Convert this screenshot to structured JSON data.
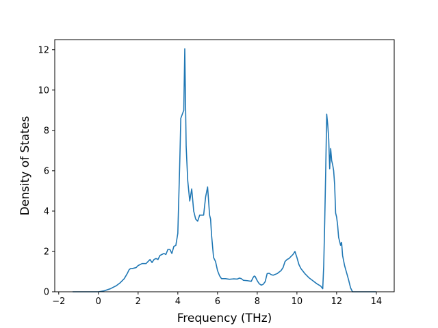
{
  "chart_data": {
    "type": "line",
    "title": "",
    "xlabel": "Frequency (THz)",
    "ylabel": "Density of States",
    "xlim": [
      -2.2,
      14.9
    ],
    "ylim": [
      0,
      12.5
    ],
    "xticks": [
      -2,
      0,
      2,
      4,
      6,
      8,
      10,
      12,
      14
    ],
    "yticks": [
      0,
      2,
      4,
      6,
      8,
      10,
      12
    ],
    "grid": false,
    "line_color": "#1f77b4",
    "series": [
      {
        "x": [
          -1.3,
          -0.5,
          0.0,
          0.3,
          0.6,
          0.9,
          1.1,
          1.3,
          1.45,
          1.55,
          1.62,
          1.7,
          1.9,
          2.0,
          2.2,
          2.4,
          2.5,
          2.6,
          2.7,
          2.8,
          2.9,
          3.0,
          3.1,
          3.2,
          3.3,
          3.4,
          3.5,
          3.6,
          3.7,
          3.8,
          3.9,
          4.0,
          4.1,
          4.15,
          4.3,
          4.35,
          4.42,
          4.5,
          4.6,
          4.7,
          4.8,
          4.9,
          5.0,
          5.1,
          5.2,
          5.3,
          5.4,
          5.5,
          5.6,
          5.65,
          5.7,
          5.8,
          5.9,
          6.0,
          6.1,
          6.2,
          6.4,
          6.6,
          6.8,
          7.0,
          7.1,
          7.2,
          7.3,
          7.5,
          7.7,
          7.8,
          7.85,
          7.9,
          8.0,
          8.1,
          8.2,
          8.3,
          8.4,
          8.5,
          8.6,
          8.7,
          8.8,
          9.0,
          9.2,
          9.3,
          9.4,
          9.5,
          9.6,
          9.7,
          9.8,
          9.9,
          10.0,
          10.1,
          10.2,
          10.4,
          10.6,
          10.8,
          11.0,
          11.2,
          11.3,
          11.35,
          11.4,
          11.45,
          11.5,
          11.55,
          11.6,
          11.65,
          11.7,
          11.75,
          11.8,
          11.85,
          11.9,
          11.95,
          12.0,
          12.05,
          12.1,
          12.2,
          12.25,
          12.3,
          12.4,
          12.5,
          12.6,
          12.7,
          12.8,
          12.85,
          12.9,
          13.0,
          13.5,
          14.0
        ],
        "y": [
          0.0,
          0.0,
          0.0,
          0.05,
          0.15,
          0.3,
          0.45,
          0.65,
          0.9,
          1.1,
          1.15,
          1.15,
          1.2,
          1.3,
          1.4,
          1.4,
          1.5,
          1.6,
          1.45,
          1.6,
          1.65,
          1.6,
          1.8,
          1.85,
          1.9,
          1.85,
          2.1,
          2.1,
          1.9,
          2.25,
          2.3,
          2.9,
          6.5,
          8.6,
          9.0,
          12.05,
          7.2,
          5.5,
          4.5,
          5.1,
          4.0,
          3.6,
          3.5,
          3.8,
          3.8,
          3.8,
          4.7,
          5.2,
          3.8,
          3.6,
          2.8,
          1.7,
          1.5,
          1.05,
          0.8,
          0.65,
          0.65,
          0.62,
          0.64,
          0.63,
          0.68,
          0.65,
          0.57,
          0.55,
          0.52,
          0.72,
          0.78,
          0.75,
          0.55,
          0.4,
          0.33,
          0.37,
          0.5,
          0.9,
          0.92,
          0.85,
          0.82,
          0.9,
          1.05,
          1.2,
          1.5,
          1.6,
          1.65,
          1.75,
          1.85,
          2.0,
          1.7,
          1.35,
          1.15,
          0.9,
          0.7,
          0.55,
          0.4,
          0.28,
          0.15,
          1.3,
          3.5,
          6.0,
          8.8,
          8.3,
          7.6,
          6.1,
          7.1,
          6.5,
          6.3,
          6.0,
          5.3,
          3.9,
          3.7,
          3.3,
          2.7,
          2.3,
          2.45,
          1.8,
          1.3,
          0.95,
          0.6,
          0.2,
          0.0,
          0.0,
          0.0,
          0.0,
          0.0,
          0.0
        ]
      }
    ]
  }
}
